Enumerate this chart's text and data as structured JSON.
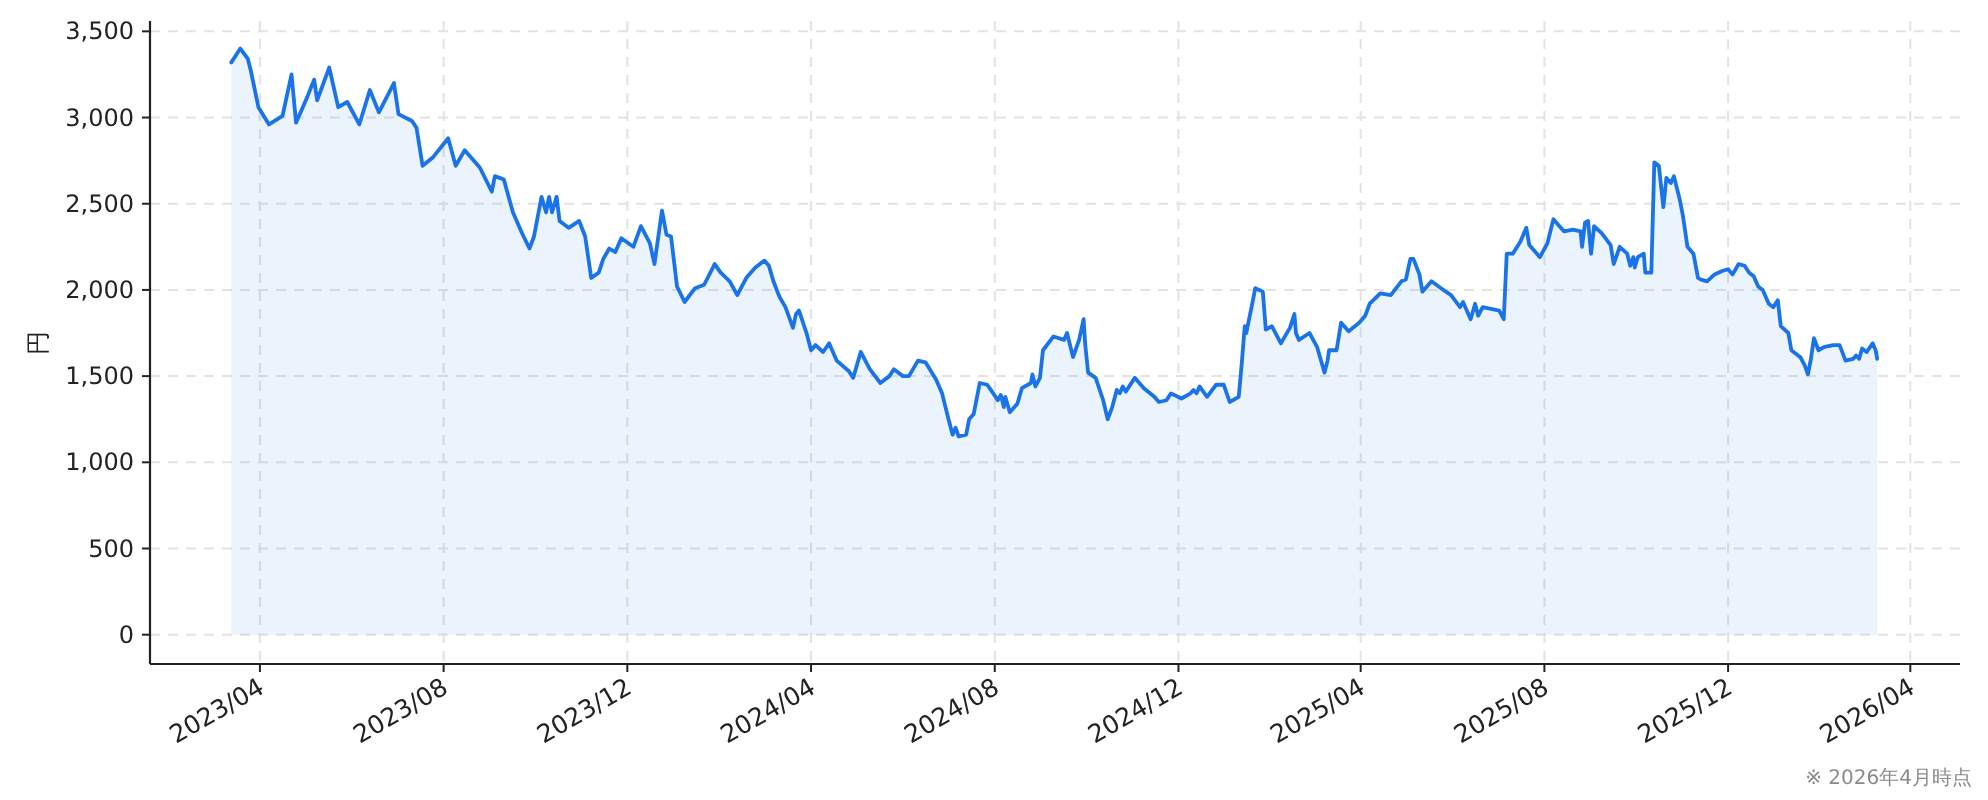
{
  "chart_data": {
    "type": "area",
    "ylabel": "円",
    "annotations": [
      "※ 2026年4月時点"
    ],
    "xlim": [
      "2023-01-18",
      "2026-05-04"
    ],
    "ylim": [
      -170,
      3560
    ],
    "xticks": [
      {
        "value": "2023-04",
        "label": "2023/04"
      },
      {
        "value": "2023-08",
        "label": "2023/08"
      },
      {
        "value": "2023-12",
        "label": "2023/12"
      },
      {
        "value": "2024-04",
        "label": "2024/04"
      },
      {
        "value": "2024-08",
        "label": "2024/08"
      },
      {
        "value": "2024-12",
        "label": "2024/12"
      },
      {
        "value": "2025-04",
        "label": "2025/04"
      },
      {
        "value": "2025-08",
        "label": "2025/08"
      },
      {
        "value": "2025-12",
        "label": "2025/12"
      },
      {
        "value": "2026-04",
        "label": "2026/04"
      }
    ],
    "yticks": [
      0,
      500,
      {
        "value": 1000,
        "label": "1,000"
      },
      {
        "value": 1500,
        "label": "1,500"
      },
      {
        "value": 2000,
        "label": "2,000"
      },
      {
        "value": 2500,
        "label": "2,500"
      },
      {
        "value": 3000,
        "label": "3,000"
      },
      {
        "value": 3500,
        "label": "3,500"
      }
    ],
    "grid": true,
    "x": [
      "2023-03-13",
      "2023-03-19",
      "2023-03-24",
      "2023-03-26",
      "2023-03-31",
      "2023-04-07",
      "2023-04-16",
      "2023-04-22",
      "2023-04-25",
      "2023-05-02",
      "2023-05-07",
      "2023-05-09",
      "2023-05-17",
      "2023-05-23",
      "2023-05-29",
      "2023-06-06",
      "2023-06-13",
      "2023-06-19",
      "2023-06-29",
      "2023-07-02",
      "2023-07-11",
      "2023-07-14",
      "2023-07-18",
      "2023-07-25",
      "2023-08-04",
      "2023-08-09",
      "2023-08-15",
      "2023-08-25",
      "2023-09-02",
      "2023-09-04",
      "2023-09-10",
      "2023-09-16",
      "2023-09-22",
      "2023-09-27",
      "2023-09-30",
      "2023-10-05",
      "2023-10-08",
      "2023-10-10",
      "2023-10-12",
      "2023-10-15",
      "2023-10-17",
      "2023-10-23",
      "2023-10-30",
      "2023-11-03",
      "2023-11-07",
      "2023-11-12",
      "2023-11-15",
      "2023-11-19",
      "2023-11-23",
      "2023-11-27",
      "2023-12-05",
      "2023-12-10",
      "2023-12-16",
      "2023-12-19",
      "2023-12-24",
      "2023-12-27",
      "2023-12-30",
      "2024-01-03",
      "2024-01-08",
      "2024-01-15",
      "2024-01-21",
      "2024-01-28",
      "2024-02-01",
      "2024-02-07",
      "2024-02-12",
      "2024-02-18",
      "2024-02-24",
      "2024-03-01",
      "2024-03-04",
      "2024-03-07",
      "2024-03-11",
      "2024-03-15",
      "2024-03-20",
      "2024-03-22",
      "2024-03-24",
      "2024-03-29",
      "2024-04-01",
      "2024-04-04",
      "2024-04-09",
      "2024-04-13",
      "2024-04-18",
      "2024-04-26",
      "2024-04-29",
      "2024-05-04",
      "2024-05-10",
      "2024-05-17",
      "2024-05-23",
      "2024-05-26",
      "2024-06-01",
      "2024-06-05",
      "2024-06-11",
      "2024-06-16",
      "2024-06-23",
      "2024-06-27",
      "2024-07-01",
      "2024-07-04",
      "2024-07-06",
      "2024-07-08",
      "2024-07-13",
      "2024-07-15",
      "2024-07-18",
      "2024-07-22",
      "2024-07-27",
      "2024-07-31",
      "2024-08-03",
      "2024-08-05",
      "2024-08-07",
      "2024-08-08",
      "2024-08-11",
      "2024-08-16",
      "2024-08-19",
      "2024-08-25",
      "2024-08-26",
      "2024-08-28",
      "2024-08-31",
      "2024-09-02",
      "2024-09-09",
      "2024-09-16",
      "2024-09-18",
      "2024-09-22",
      "2024-09-26",
      "2024-09-29",
      "2024-09-30",
      "2024-10-02",
      "2024-10-07",
      "2024-10-12",
      "2024-10-15",
      "2024-10-18",
      "2024-10-21",
      "2024-10-23",
      "2024-10-25",
      "2024-10-27",
      "2024-11-02",
      "2024-11-08",
      "2024-11-15",
      "2024-11-18",
      "2024-11-23",
      "2024-11-26",
      "2024-12-03",
      "2024-12-09",
      "2024-12-11",
      "2024-12-13",
      "2024-12-15",
      "2024-12-20",
      "2024-12-26",
      "2024-12-31",
      "2025-01-04",
      "2025-01-10",
      "2025-01-12",
      "2025-01-14",
      "2025-01-15",
      "2025-01-19",
      "2025-01-21",
      "2025-01-26",
      "2025-01-28",
      "2025-02-01",
      "2025-02-07",
      "2025-02-13",
      "2025-02-16",
      "2025-02-17",
      "2025-02-19",
      "2025-02-26",
      "2025-03-03",
      "2025-03-08",
      "2025-03-10",
      "2025-03-11",
      "2025-03-16",
      "2025-03-19",
      "2025-03-24",
      "2025-03-31",
      "2025-04-04",
      "2025-04-07",
      "2025-04-14",
      "2025-04-21",
      "2025-04-28",
      "2025-05-01",
      "2025-05-04",
      "2025-05-06",
      "2025-05-10",
      "2025-05-12",
      "2025-05-18",
      "2025-05-26",
      "2025-05-31",
      "2025-06-06",
      "2025-06-08",
      "2025-06-13",
      "2025-06-16",
      "2025-06-18",
      "2025-06-21",
      "2025-07-02",
      "2025-07-05",
      "2025-07-07",
      "2025-07-11",
      "2025-07-16",
      "2025-07-20",
      "2025-07-22",
      "2025-07-29",
      "2025-08-03",
      "2025-08-07",
      "2025-08-11",
      "2025-08-14",
      "2025-08-20",
      "2025-08-25",
      "2025-08-26",
      "2025-08-28",
      "2025-08-30",
      "2025-09-01",
      "2025-09-03",
      "2025-09-08",
      "2025-09-14",
      "2025-09-16",
      "2025-09-20",
      "2025-09-25",
      "2025-09-27",
      "2025-09-29",
      "2025-09-30",
      "2025-10-02",
      "2025-10-06",
      "2025-10-07",
      "2025-10-11",
      "2025-10-13",
      "2025-10-16",
      "2025-10-19",
      "2025-10-21",
      "2025-10-24",
      "2025-10-26",
      "2025-10-30",
      "2025-11-01",
      "2025-11-04",
      "2025-11-08",
      "2025-11-11",
      "2025-11-13",
      "2025-11-17",
      "2025-11-22",
      "2025-11-27",
      "2025-12-01",
      "2025-12-04",
      "2025-12-08",
      "2025-12-12",
      "2025-12-15",
      "2025-12-18",
      "2025-12-21",
      "2025-12-24",
      "2025-12-28",
      "2025-12-31",
      "2026-01-03",
      "2026-01-05",
      "2026-01-10",
      "2026-01-12",
      "2026-01-18",
      "2026-01-21",
      "2026-01-23",
      "2026-01-25",
      "2026-01-27",
      "2026-01-30",
      "2026-02-03",
      "2026-02-09",
      "2026-02-13",
      "2026-02-17",
      "2026-02-22",
      "2026-02-24",
      "2026-02-26",
      "2026-02-28",
      "2026-03-03",
      "2026-03-07",
      "2026-03-09",
      "2026-03-10"
    ],
    "series": [
      {
        "color": "#1a73e8",
        "values": [
          3320,
          3400,
          3340,
          3270,
          3060,
          2960,
          3010,
          3250,
          2970,
          3110,
          3220,
          3100,
          3290,
          3060,
          3090,
          2960,
          3160,
          3030,
          3200,
          3020,
          2980,
          2940,
          2720,
          2770,
          2880,
          2720,
          2810,
          2710,
          2570,
          2660,
          2640,
          2450,
          2330,
          2240,
          2310,
          2540,
          2450,
          2540,
          2450,
          2540,
          2400,
          2360,
          2400,
          2310,
          2070,
          2100,
          2180,
          2240,
          2220,
          2300,
          2250,
          2370,
          2270,
          2150,
          2460,
          2320,
          2310,
          2020,
          1930,
          2010,
          2030,
          2150,
          2100,
          2050,
          1970,
          2070,
          2130,
          2170,
          2140,
          2050,
          1960,
          1900,
          1780,
          1860,
          1880,
          1750,
          1650,
          1680,
          1640,
          1690,
          1590,
          1530,
          1490,
          1640,
          1540,
          1460,
          1500,
          1540,
          1500,
          1500,
          1590,
          1580,
          1480,
          1400,
          1260,
          1160,
          1200,
          1150,
          1160,
          1250,
          1280,
          1460,
          1450,
          1400,
          1360,
          1390,
          1320,
          1380,
          1290,
          1340,
          1430,
          1460,
          1510,
          1440,
          1490,
          1650,
          1730,
          1710,
          1750,
          1610,
          1710,
          1830,
          1690,
          1520,
          1490,
          1360,
          1250,
          1320,
          1420,
          1400,
          1440,
          1410,
          1490,
          1430,
          1380,
          1350,
          1360,
          1400,
          1370,
          1400,
          1420,
          1400,
          1440,
          1380,
          1450,
          1450,
          1350,
          1380,
          1570,
          1790,
          1750,
          1920,
          2010,
          1990,
          1770,
          1790,
          1690,
          1780,
          1860,
          1750,
          1710,
          1750,
          1670,
          1520,
          1590,
          1650,
          1650,
          1810,
          1760,
          1810,
          1850,
          1920,
          1980,
          1970,
          2050,
          2060,
          2180,
          2180,
          2090,
          1990,
          2050,
          2000,
          1970,
          1900,
          1930,
          1830,
          1920,
          1850,
          1900,
          1880,
          1830,
          2210,
          2210,
          2280,
          2360,
          2260,
          2190,
          2270,
          2410,
          2370,
          2340,
          2350,
          2340,
          2250,
          2390,
          2400,
          2210,
          2370,
          2330,
          2260,
          2150,
          2250,
          2210,
          2140,
          2190,
          2130,
          2190,
          2210,
          2100,
          2100,
          2740,
          2720,
          2480,
          2650,
          2620,
          2660,
          2520,
          2430,
          2250,
          2210,
          2070,
          2060,
          2050,
          2090,
          2110,
          2120,
          2090,
          2150,
          2140,
          2100,
          2080,
          2020,
          2000,
          1920,
          1900,
          1940,
          1790,
          1750,
          1650,
          1610,
          1560,
          1510,
          1600,
          1720,
          1650,
          1670,
          1680,
          1680,
          1590,
          1600,
          1620,
          1600,
          1660,
          1640,
          1690,
          1650,
          1600
        ]
      }
    ]
  }
}
